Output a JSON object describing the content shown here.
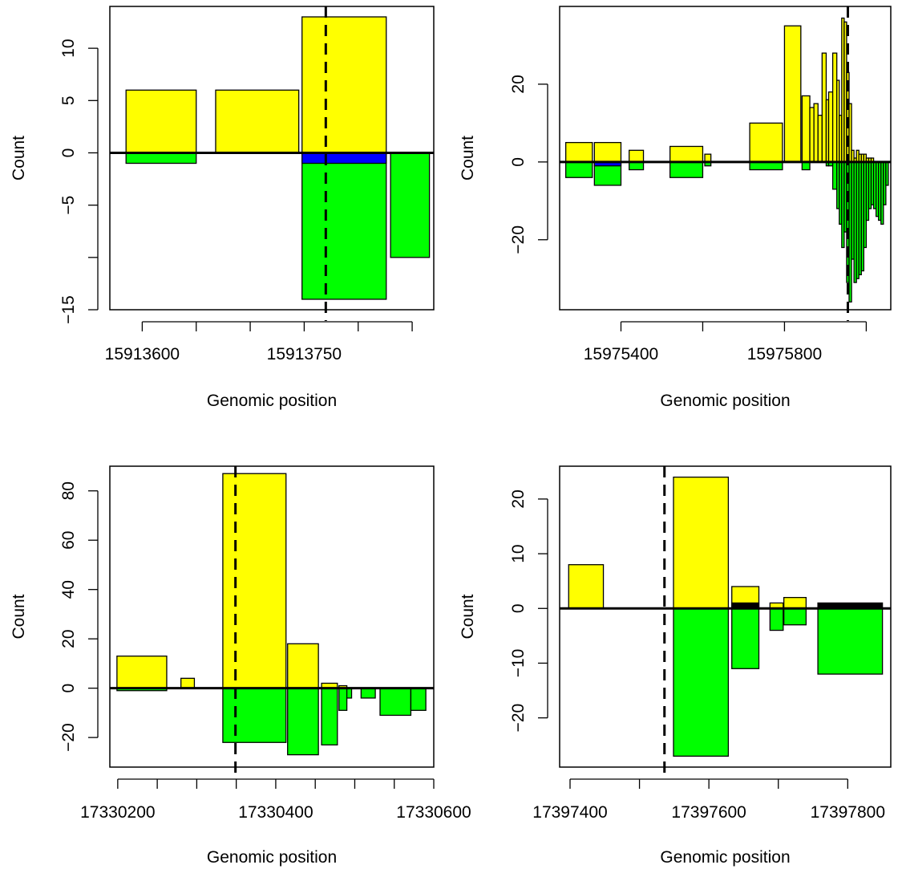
{
  "chart_data": [
    {
      "type": "bar",
      "xlabel": "Genomic position",
      "ylabel": "Count",
      "xlim": [
        15913570,
        15913870
      ],
      "ylim": [
        -15,
        14
      ],
      "xticks": [
        15913600,
        15913650,
        15913700,
        15913750,
        15913800,
        15913850
      ],
      "xtick_labels": [
        "15913600",
        "",
        "",
        "15913750",
        "",
        ""
      ],
      "yticks": [
        -15,
        -10,
        -5,
        0,
        5,
        10
      ],
      "ytick_labels": [
        "−15",
        "",
        "−5",
        "0",
        "5",
        "10"
      ],
      "vline": 15913770,
      "colors": {
        "positive": "#ffff00",
        "negative": "#00ff00",
        "overlay": "#0000ff"
      },
      "bars": [
        {
          "x0": 15913585,
          "x1": 15913650,
          "value": 6,
          "color": "#ffff00"
        },
        {
          "x0": 15913668,
          "x1": 15913745,
          "value": 6,
          "color": "#ffff00"
        },
        {
          "x0": 15913748,
          "x1": 15913826,
          "value": 13,
          "color": "#ffff00"
        },
        {
          "x0": 15913585,
          "x1": 15913650,
          "value": -1,
          "color": "#00ff00"
        },
        {
          "x0": 15913748,
          "x1": 15913826,
          "value": -14,
          "color": "#00ff00"
        },
        {
          "x0": 15913748,
          "x1": 15913826,
          "value": -1,
          "color": "#0000ff"
        },
        {
          "x0": 15913830,
          "x1": 15913866,
          "value": -10,
          "color": "#00ff00"
        }
      ]
    },
    {
      "type": "bar",
      "xlabel": "Genomic position",
      "ylabel": "Count",
      "xlim": [
        15975250,
        15976060
      ],
      "ylim": [
        -38,
        40
      ],
      "xticks": [
        15975400,
        15975600,
        15975800,
        15976000
      ],
      "xtick_labels": [
        "15975400",
        "",
        "15975800",
        ""
      ],
      "yticks": [
        -20,
        0,
        20
      ],
      "ytick_labels": [
        "−20",
        "0",
        "20"
      ],
      "vline": 15975955,
      "colors": {
        "positive": "#ffff00",
        "negative": "#00ff00",
        "overlay": "#0000ff"
      },
      "bars": [
        {
          "x0": 15975265,
          "x1": 15975330,
          "value": 5,
          "color": "#ffff00"
        },
        {
          "x0": 15975265,
          "x1": 15975330,
          "value": -4,
          "color": "#00ff00"
        },
        {
          "x0": 15975335,
          "x1": 15975400,
          "value": 5,
          "color": "#ffff00"
        },
        {
          "x0": 15975335,
          "x1": 15975400,
          "value": -6,
          "color": "#00ff00"
        },
        {
          "x0": 15975335,
          "x1": 15975400,
          "value": -1,
          "color": "#0000ff"
        },
        {
          "x0": 15975420,
          "x1": 15975455,
          "value": 3,
          "color": "#ffff00"
        },
        {
          "x0": 15975420,
          "x1": 15975455,
          "value": -2,
          "color": "#00ff00"
        },
        {
          "x0": 15975520,
          "x1": 15975600,
          "value": 4,
          "color": "#ffff00"
        },
        {
          "x0": 15975520,
          "x1": 15975600,
          "value": -4,
          "color": "#00ff00"
        },
        {
          "x0": 15975605,
          "x1": 15975620,
          "value": 2,
          "color": "#ffff00"
        },
        {
          "x0": 15975605,
          "x1": 15975620,
          "value": -1,
          "color": "#00ff00"
        },
        {
          "x0": 15975715,
          "x1": 15975795,
          "value": 10,
          "color": "#ffff00"
        },
        {
          "x0": 15975715,
          "x1": 15975795,
          "value": -2,
          "color": "#00ff00"
        },
        {
          "x0": 15975800,
          "x1": 15975840,
          "value": 35,
          "color": "#ffff00"
        },
        {
          "x0": 15975843,
          "x1": 15975862,
          "value": 17,
          "color": "#ffff00"
        },
        {
          "x0": 15975843,
          "x1": 15975862,
          "value": -2,
          "color": "#00ff00"
        },
        {
          "x0": 15975862,
          "x1": 15975872,
          "value": 14,
          "color": "#ffff00"
        },
        {
          "x0": 15975872,
          "x1": 15975882,
          "value": 15,
          "color": "#ffff00"
        },
        {
          "x0": 15975882,
          "x1": 15975892,
          "value": 12,
          "color": "#ffff00"
        },
        {
          "x0": 15975892,
          "x1": 15975902,
          "value": 28,
          "color": "#ffff00"
        },
        {
          "x0": 15975902,
          "x1": 15975908,
          "value": 16,
          "color": "#ffff00"
        },
        {
          "x0": 15975902,
          "x1": 15975908,
          "value": -1,
          "color": "#00ff00"
        },
        {
          "x0": 15975908,
          "x1": 15975918,
          "value": 18,
          "color": "#ffff00"
        },
        {
          "x0": 15975908,
          "x1": 15975918,
          "value": -1,
          "color": "#00ff00"
        },
        {
          "x0": 15975918,
          "x1": 15975928,
          "value": 28,
          "color": "#ffff00"
        },
        {
          "x0": 15975918,
          "x1": 15975928,
          "value": -7,
          "color": "#00ff00"
        },
        {
          "x0": 15975928,
          "x1": 15975934,
          "value": 21,
          "color": "#ffff00"
        },
        {
          "x0": 15975928,
          "x1": 15975934,
          "value": -12,
          "color": "#00ff00"
        },
        {
          "x0": 15975934,
          "x1": 15975940,
          "value": 12,
          "color": "#ffff00"
        },
        {
          "x0": 15975934,
          "x1": 15975940,
          "value": -16,
          "color": "#00ff00"
        },
        {
          "x0": 15975940,
          "x1": 15975946,
          "value": 37,
          "color": "#ffff00"
        },
        {
          "x0": 15975940,
          "x1": 15975946,
          "value": -22,
          "color": "#00ff00"
        },
        {
          "x0": 15975946,
          "x1": 15975952,
          "value": 36,
          "color": "#ffff00"
        },
        {
          "x0": 15975946,
          "x1": 15975952,
          "value": -18,
          "color": "#00ff00"
        },
        {
          "x0": 15975952,
          "x1": 15975958,
          "value": 23,
          "color": "#ffff00"
        },
        {
          "x0": 15975952,
          "x1": 15975958,
          "value": -31,
          "color": "#00ff00"
        },
        {
          "x0": 15975958,
          "x1": 15975964,
          "value": 15,
          "color": "#ffff00"
        },
        {
          "x0": 15975958,
          "x1": 15975964,
          "value": -36,
          "color": "#00ff00"
        },
        {
          "x0": 15975964,
          "x1": 15975970,
          "value": 3,
          "color": "#ffff00"
        },
        {
          "x0": 15975964,
          "x1": 15975970,
          "value": -25,
          "color": "#00ff00"
        },
        {
          "x0": 15975970,
          "x1": 15975976,
          "value": 1,
          "color": "#ffff00"
        },
        {
          "x0": 15975970,
          "x1": 15975976,
          "value": -31,
          "color": "#00ff00"
        },
        {
          "x0": 15975976,
          "x1": 15975982,
          "value": 3,
          "color": "#ffff00"
        },
        {
          "x0": 15975976,
          "x1": 15975982,
          "value": -30,
          "color": "#00ff00"
        },
        {
          "x0": 15975982,
          "x1": 15975988,
          "value": 2,
          "color": "#ffff00"
        },
        {
          "x0": 15975982,
          "x1": 15975988,
          "value": -29,
          "color": "#00ff00"
        },
        {
          "x0": 15975988,
          "x1": 15975994,
          "value": 2,
          "color": "#ffff00"
        },
        {
          "x0": 15975988,
          "x1": 15975994,
          "value": -28,
          "color": "#00ff00"
        },
        {
          "x0": 15975994,
          "x1": 15976000,
          "value": 2,
          "color": "#ffff00"
        },
        {
          "x0": 15975994,
          "x1": 15976000,
          "value": -22,
          "color": "#00ff00"
        },
        {
          "x0": 15976000,
          "x1": 15976006,
          "value": 1,
          "color": "#ffff00"
        },
        {
          "x0": 15976000,
          "x1": 15976006,
          "value": -15,
          "color": "#00ff00"
        },
        {
          "x0": 15976006,
          "x1": 15976012,
          "value": 1,
          "color": "#ffff00"
        },
        {
          "x0": 15976006,
          "x1": 15976012,
          "value": -12,
          "color": "#00ff00"
        },
        {
          "x0": 15976012,
          "x1": 15976018,
          "value": 1,
          "color": "#ffff00"
        },
        {
          "x0": 15976012,
          "x1": 15976018,
          "value": -11,
          "color": "#00ff00"
        },
        {
          "x0": 15976018,
          "x1": 15976024,
          "value": -12,
          "color": "#00ff00"
        },
        {
          "x0": 15976024,
          "x1": 15976030,
          "value": -14,
          "color": "#00ff00"
        },
        {
          "x0": 15976030,
          "x1": 15976036,
          "value": -15,
          "color": "#00ff00"
        },
        {
          "x0": 15976036,
          "x1": 15976042,
          "value": -16,
          "color": "#00ff00"
        },
        {
          "x0": 15976042,
          "x1": 15976048,
          "value": -11,
          "color": "#00ff00"
        },
        {
          "x0": 15976048,
          "x1": 15976054,
          "value": -6,
          "color": "#00ff00"
        }
      ]
    },
    {
      "type": "bar",
      "xlabel": "Genomic position",
      "ylabel": "Count",
      "xlim": [
        17330190,
        17330600
      ],
      "ylim": [
        -32,
        90
      ],
      "xticks": [
        17330200,
        17330250,
        17330300,
        17330350,
        17330400,
        17330450,
        17330500,
        17330550,
        17330600
      ],
      "xtick_labels": [
        "17330200",
        "",
        "",
        "",
        "17330400",
        "",
        "",
        "",
        "17330600"
      ],
      "yticks": [
        -20,
        0,
        20,
        40,
        60,
        80
      ],
      "ytick_labels": [
        "−20",
        "0",
        "20",
        "40",
        "60",
        "80"
      ],
      "vline": 17330349,
      "colors": {
        "positive": "#ffff00",
        "negative": "#00ff00",
        "overlay": "#0000ff"
      },
      "bars": [
        {
          "x0": 17330199,
          "x1": 17330262,
          "value": 13,
          "color": "#ffff00"
        },
        {
          "x0": 17330199,
          "x1": 17330262,
          "value": -1,
          "color": "#00ff00"
        },
        {
          "x0": 17330280,
          "x1": 17330297,
          "value": 4,
          "color": "#ffff00"
        },
        {
          "x0": 17330333,
          "x1": 17330413,
          "value": 87,
          "color": "#ffff00"
        },
        {
          "x0": 17330333,
          "x1": 17330413,
          "value": -22,
          "color": "#00ff00"
        },
        {
          "x0": 17330415,
          "x1": 17330454,
          "value": 18,
          "color": "#ffff00"
        },
        {
          "x0": 17330415,
          "x1": 17330454,
          "value": -27,
          "color": "#00ff00"
        },
        {
          "x0": 17330458,
          "x1": 17330478,
          "value": 2,
          "color": "#ffff00"
        },
        {
          "x0": 17330458,
          "x1": 17330478,
          "value": -23,
          "color": "#00ff00"
        },
        {
          "x0": 17330480,
          "x1": 17330490,
          "value": 1,
          "color": "#ffff00"
        },
        {
          "x0": 17330480,
          "x1": 17330490,
          "value": -9,
          "color": "#00ff00"
        },
        {
          "x0": 17330490,
          "x1": 17330496,
          "value": -4,
          "color": "#00ff00"
        },
        {
          "x0": 17330508,
          "x1": 17330526,
          "value": -4,
          "color": "#00ff00"
        },
        {
          "x0": 17330532,
          "x1": 17330571,
          "value": -11,
          "color": "#00ff00"
        },
        {
          "x0": 17330571,
          "x1": 17330590,
          "value": -9,
          "color": "#00ff00"
        }
      ]
    },
    {
      "type": "bar",
      "xlabel": "Genomic position",
      "ylabel": "Count",
      "xlim": [
        17397385,
        17397862
      ],
      "ylim": [
        -29,
        26
      ],
      "xticks": [
        17397400,
        17397500,
        17397600,
        17397700,
        17397800
      ],
      "xtick_labels": [
        "17397400",
        "",
        "17397600",
        "",
        "17397800"
      ],
      "yticks": [
        -20,
        -10,
        0,
        10,
        20
      ],
      "ytick_labels": [
        "−20",
        "−10",
        "0",
        "10",
        "20"
      ],
      "vline": 17397536,
      "colors": {
        "positive": "#ffff00",
        "negative": "#00ff00",
        "overlay": "#000000"
      },
      "bars": [
        {
          "x0": 17397398,
          "x1": 17397448,
          "value": 8,
          "color": "#ffff00"
        },
        {
          "x0": 17397549,
          "x1": 17397628,
          "value": 24,
          "color": "#ffff00"
        },
        {
          "x0": 17397549,
          "x1": 17397628,
          "value": -27,
          "color": "#00ff00"
        },
        {
          "x0": 17397633,
          "x1": 17397672,
          "value": 4,
          "color": "#ffff00"
        },
        {
          "x0": 17397633,
          "x1": 17397672,
          "value": 1,
          "color": "#000000"
        },
        {
          "x0": 17397633,
          "x1": 17397672,
          "value": -11,
          "color": "#00ff00"
        },
        {
          "x0": 17397688,
          "x1": 17397707,
          "value": 1,
          "color": "#ffff00"
        },
        {
          "x0": 17397688,
          "x1": 17397707,
          "value": -4,
          "color": "#00ff00"
        },
        {
          "x0": 17397708,
          "x1": 17397740,
          "value": 2,
          "color": "#ffff00"
        },
        {
          "x0": 17397708,
          "x1": 17397740,
          "value": -3,
          "color": "#00ff00"
        },
        {
          "x0": 17397757,
          "x1": 17397850,
          "value": 1,
          "color": "#000000"
        },
        {
          "x0": 17397757,
          "x1": 17397850,
          "value": -12,
          "color": "#00ff00"
        }
      ]
    }
  ]
}
